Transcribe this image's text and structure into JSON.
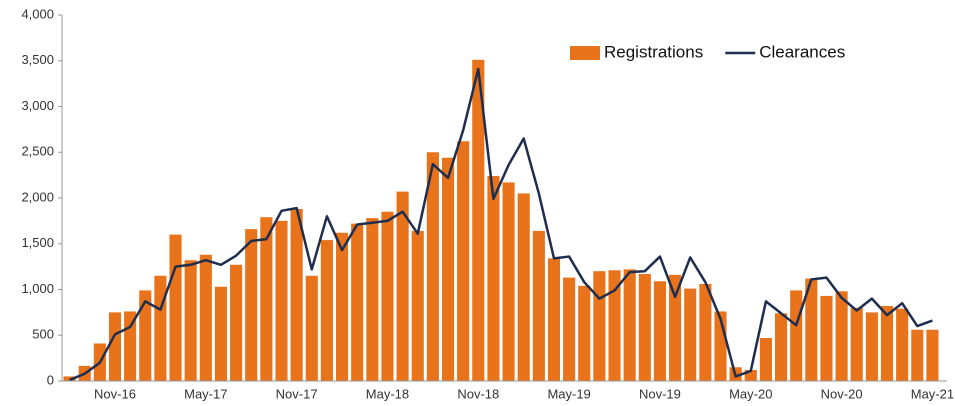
{
  "chart_data": {
    "type": "bar_line",
    "categories": [
      null,
      null,
      null,
      "Nov-16",
      null,
      null,
      null,
      null,
      null,
      "May-17",
      null,
      null,
      null,
      null,
      null,
      "Nov-17",
      null,
      null,
      null,
      null,
      null,
      "May-18",
      null,
      null,
      null,
      null,
      null,
      "Nov-18",
      null,
      null,
      null,
      null,
      null,
      "May-19",
      null,
      null,
      null,
      null,
      null,
      "Nov-19",
      null,
      null,
      null,
      null,
      null,
      "May-20",
      null,
      null,
      null,
      null,
      null,
      "Nov-20",
      null,
      null,
      null,
      null,
      null,
      "May-21"
    ],
    "series": [
      {
        "name": "Registrations",
        "type": "bar",
        "color": "#e8731a",
        "values": [
          50,
          165,
          410,
          750,
          760,
          990,
          1150,
          1600,
          1320,
          1380,
          1030,
          1270,
          1660,
          1790,
          1750,
          1880,
          1150,
          1540,
          1620,
          1720,
          1780,
          1850,
          2070,
          1640,
          2500,
          2440,
          2620,
          3510,
          2240,
          2170,
          2050,
          1640,
          1340,
          1130,
          1040,
          1200,
          1210,
          1220,
          1170,
          1090,
          1160,
          1010,
          1060,
          760,
          150,
          120,
          470,
          740,
          990,
          1120,
          930,
          980,
          800,
          750,
          820,
          790,
          560,
          560
        ]
      },
      {
        "name": "Clearances",
        "type": "line",
        "color": "#1f2d4e",
        "values": [
          10,
          80,
          200,
          510,
          590,
          870,
          780,
          1250,
          1270,
          1320,
          1270,
          1370,
          1530,
          1550,
          1860,
          1890,
          1220,
          1800,
          1430,
          1710,
          1730,
          1750,
          1850,
          1610,
          2370,
          2220,
          2740,
          3410,
          1990,
          2360,
          2650,
          2050,
          1340,
          1360,
          1080,
          900,
          990,
          1190,
          1200,
          1360,
          920,
          1350,
          1080,
          680,
          50,
          110,
          870,
          740,
          610,
          1110,
          1130,
          910,
          770,
          900,
          720,
          850,
          600,
          660
        ]
      }
    ],
    "ylim": [
      0,
      4000
    ],
    "yticks": [
      0,
      500,
      {
        "value": 1000,
        "label": "1,000"
      },
      {
        "value": 1500,
        "label": "1,500"
      },
      {
        "value": 2000,
        "label": "2,000"
      },
      {
        "value": 2500,
        "label": "2,500"
      },
      {
        "value": 3000,
        "label": "3,000"
      },
      {
        "value": 3500,
        "label": "3,500"
      },
      {
        "value": 4000,
        "label": "4,000"
      }
    ],
    "grid": false,
    "legend": "top-right"
  }
}
